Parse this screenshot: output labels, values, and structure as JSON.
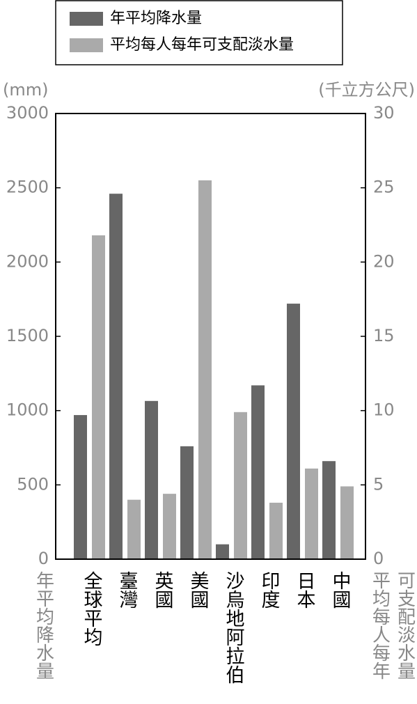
{
  "chart_data": {
    "type": "bar",
    "categories": [
      "全球平均",
      "臺灣",
      "英國",
      "美國",
      "沙烏地阿拉伯",
      "印度",
      "日本",
      "中國"
    ],
    "series": [
      {
        "name": "年平均降水量",
        "color": "#666666",
        "values": [
          970,
          2460,
          1065,
          760,
          100,
          1170,
          1720,
          660
        ]
      },
      {
        "name": "平均每人每年可支配淡水量",
        "color": "#aaaaaa",
        "axis": "y2",
        "values": [
          21.8,
          4.0,
          4.4,
          25.5,
          9.9,
          3.8,
          6.1,
          4.9
        ]
      }
    ],
    "ylim": [
      0,
      3000
    ],
    "yticks": [
      0,
      500,
      1000,
      1500,
      2000,
      2500,
      3000
    ],
    "y2lim": [
      0,
      30
    ],
    "y2ticks": [
      0,
      5,
      10,
      15,
      20,
      25,
      30
    ],
    "y_unit": "(mm)",
    "y2_unit": "(千立方公尺)",
    "y_label": "年平均降水量",
    "y2_label": [
      "平均每人每年",
      "可支配淡水量"
    ]
  }
}
